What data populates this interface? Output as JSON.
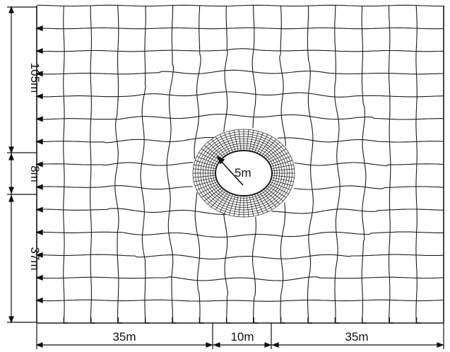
{
  "diagram": {
    "type": "finite-element-mesh",
    "subject": "circular tunnel opening in surrounding ground",
    "colors": {
      "lines": "#1a1a1a",
      "background": "#ffffff",
      "opening": "#ffffff"
    },
    "labels": {
      "radius": "5m",
      "height_top": "105m",
      "height_middle": "8m",
      "height_bottom": "37m",
      "width_left": "35m",
      "width_middle": "10m",
      "width_right": "35m"
    },
    "boundary_conditions": {
      "left_edge": "horizontal roller supports",
      "bottom_edge": "vertical roller supports"
    }
  }
}
